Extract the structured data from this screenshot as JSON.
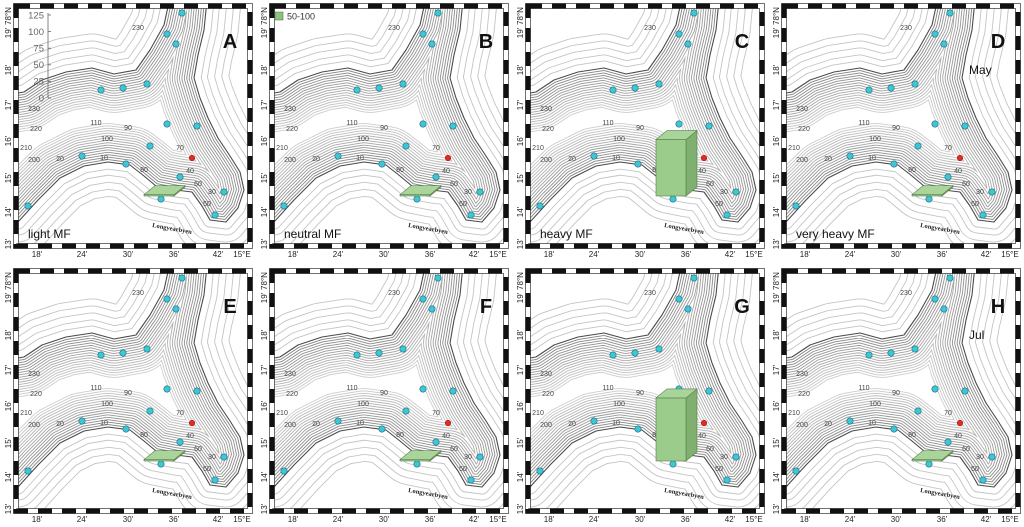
{
  "figure": {
    "lat_labels": [
      "78°N",
      "19'",
      "18'",
      "17'",
      "16'",
      "15'",
      "14'",
      "13'"
    ],
    "lon_labels": [
      "18'",
      "24'",
      "30'",
      "36'",
      "42'",
      "15°E"
    ],
    "contour_labels": [
      "230",
      "230",
      "220",
      "210",
      "200",
      "20",
      "10",
      "110",
      "100",
      "90",
      "80",
      "70",
      "60",
      "50",
      "40",
      "30"
    ],
    "place_label": "Longyearbyen",
    "colors": {
      "land_contour": "#c4c4c4",
      "water_contour": "#6f6f6f",
      "coast": "#4a4a4a",
      "station": "#3fc6d6",
      "highlight_station": "#e32b1f",
      "bar": "#9ccc8c"
    },
    "panels": [
      {
        "letter": "A",
        "condition": "light MF",
        "value": 2,
        "scale": {
          "ticks": [
            "125",
            "100",
            "75",
            "50",
            "25",
            "0"
          ]
        }
      },
      {
        "letter": "B",
        "condition": "neutral MF",
        "value": 2,
        "legend": {
          "label": "50-100",
          "color": "#8fc17e"
        }
      },
      {
        "letter": "C",
        "condition": "heavy MF",
        "value": 85
      },
      {
        "letter": "D",
        "condition": "very heavy MF",
        "month": "May",
        "value": 2
      },
      {
        "letter": "E",
        "value": 2
      },
      {
        "letter": "F",
        "value": 2
      },
      {
        "letter": "G",
        "value": 95
      },
      {
        "letter": "H",
        "month": "Jul",
        "value": 2
      }
    ]
  }
}
